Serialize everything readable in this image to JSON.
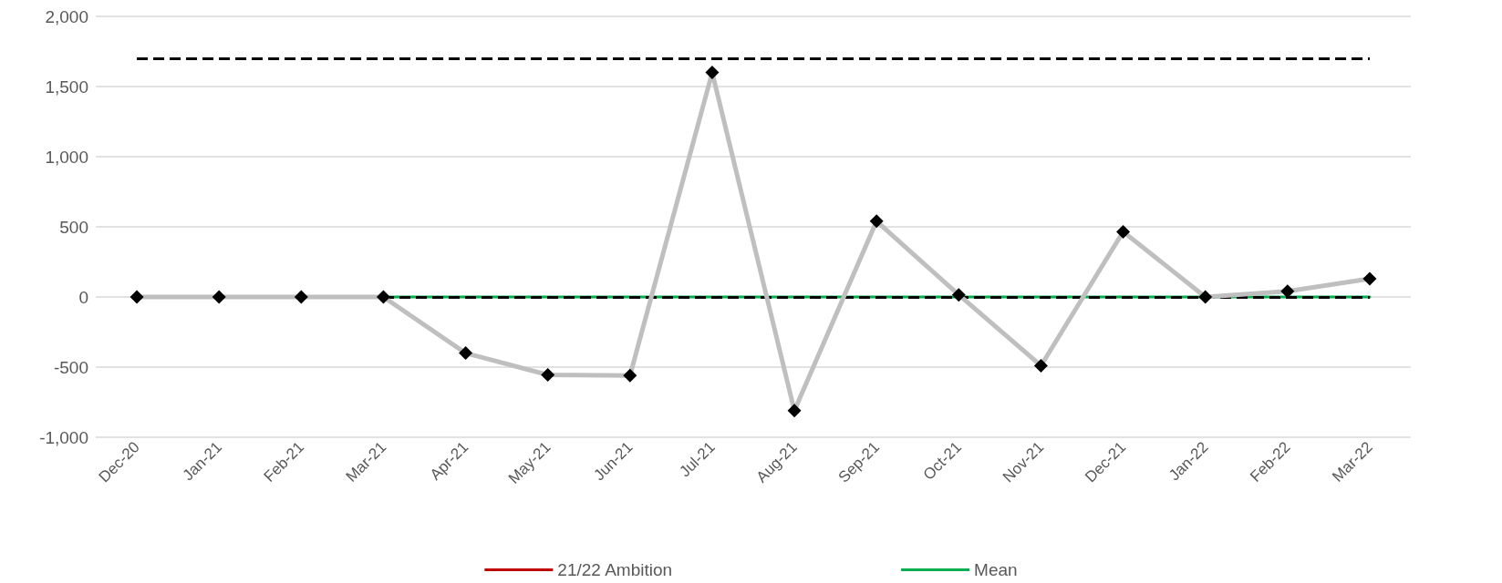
{
  "chart_data": {
    "type": "line",
    "categories": [
      "Dec-20",
      "Jan-21",
      "Feb-21",
      "Mar-21",
      "Apr-21",
      "May-21",
      "Jun-21",
      "Jul-21",
      "Aug-21",
      "Sep-21",
      "Oct-21",
      "Nov-21",
      "Dec-21",
      "Jan-22",
      "Feb-22",
      "Mar-22"
    ],
    "series": [
      {
        "color": "#bfbfbf",
        "marker": "diamond",
        "values": [
          0,
          0,
          0,
          0,
          -400,
          -555,
          -560,
          1600,
          -810,
          540,
          15,
          -490,
          465,
          0,
          40,
          130
        ]
      },
      {
        "name": "21/22 Ambition",
        "color": "#c00000",
        "marker": "none",
        "values": [
          null,
          null,
          null,
          null,
          null,
          null,
          null,
          null,
          null,
          null,
          null,
          null,
          null,
          null,
          null,
          null
        ]
      },
      {
        "name": "Mean",
        "color": "#00b050",
        "marker": "none",
        "values": [
          null,
          null,
          null,
          0,
          0,
          0,
          0,
          0,
          0,
          0,
          0,
          0,
          0,
          0,
          0,
          0
        ]
      }
    ],
    "ref_lines": [
      {
        "axis": "y",
        "value": 1700,
        "color": "#000000",
        "line_style": "dashed"
      },
      {
        "axis": "y",
        "value": 0,
        "color": "#000000",
        "line_style": "dashed"
      }
    ],
    "ylim": [
      -1000,
      2000
    ],
    "yticks": [
      {
        "value": -1000,
        "label": "-1,000"
      },
      -500,
      0,
      500,
      {
        "value": 1000,
        "label": "1,000"
      },
      {
        "value": 1500,
        "label": "1,500"
      },
      {
        "value": 2000,
        "label": "2,000"
      }
    ],
    "grid": "y",
    "legend": "bottom"
  }
}
